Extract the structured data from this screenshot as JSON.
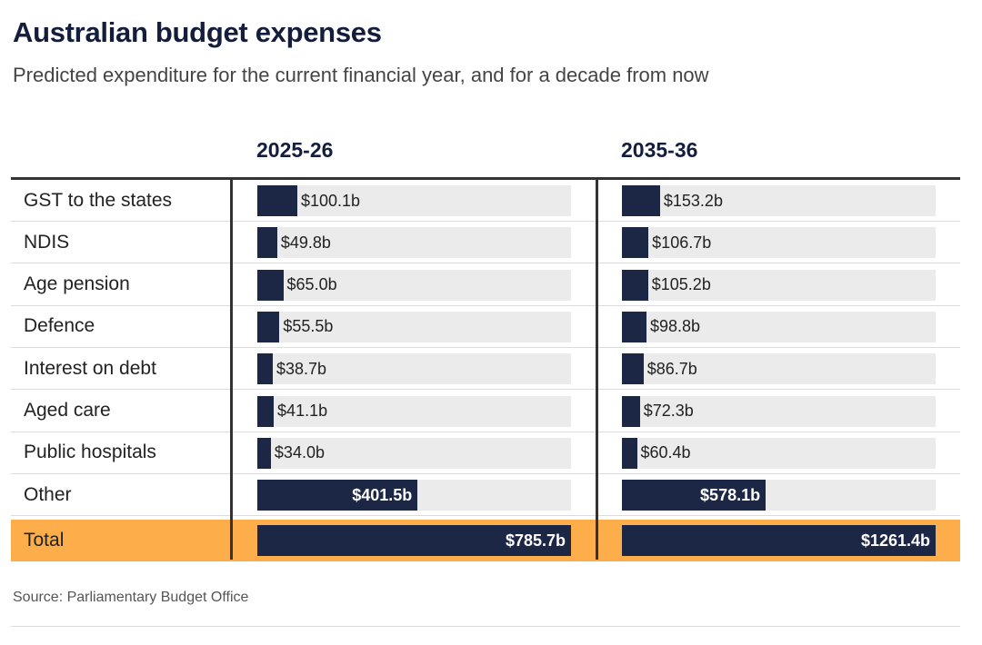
{
  "header": {
    "title": "Australian budget expenses",
    "subtitle": "Predicted expenditure for the current financial year, and for a decade from now"
  },
  "footer": {
    "source": "Source: Parliamentary Budget Office"
  },
  "colors": {
    "bar": "#1c2645",
    "track": "#ebebeb",
    "total_row": "#fdad4a"
  },
  "chart_data": {
    "type": "bar",
    "title": "Australian budget expenses",
    "subtitle": "Predicted expenditure for the current financial year, and for a decade from now",
    "unit": "$ billion",
    "categories": [
      "GST to the states",
      "NDIS",
      "Age pension",
      "Defence",
      "Interest on debt",
      "Aged care",
      "Public hospitals",
      "Other",
      "Total"
    ],
    "series": [
      {
        "name": "2025-26",
        "values": [
          100.1,
          49.8,
          65.0,
          55.5,
          38.7,
          41.1,
          34.0,
          401.5,
          785.7
        ],
        "labels": [
          "$100.1b",
          "$49.8b",
          "$65.0b",
          "$55.5b",
          "$38.7b",
          "$41.1b",
          "$34.0b",
          "$401.5b",
          "$785.7b"
        ]
      },
      {
        "name": "2035-36",
        "values": [
          153.2,
          106.7,
          105.2,
          98.8,
          86.7,
          72.3,
          60.4,
          578.1,
          1261.4
        ],
        "labels": [
          "$153.2b",
          "$106.7b",
          "$105.2b",
          "$98.8b",
          "$86.7b",
          "$72.3b",
          "$60.4b",
          "$578.1b",
          "$1261.4b"
        ]
      }
    ]
  }
}
